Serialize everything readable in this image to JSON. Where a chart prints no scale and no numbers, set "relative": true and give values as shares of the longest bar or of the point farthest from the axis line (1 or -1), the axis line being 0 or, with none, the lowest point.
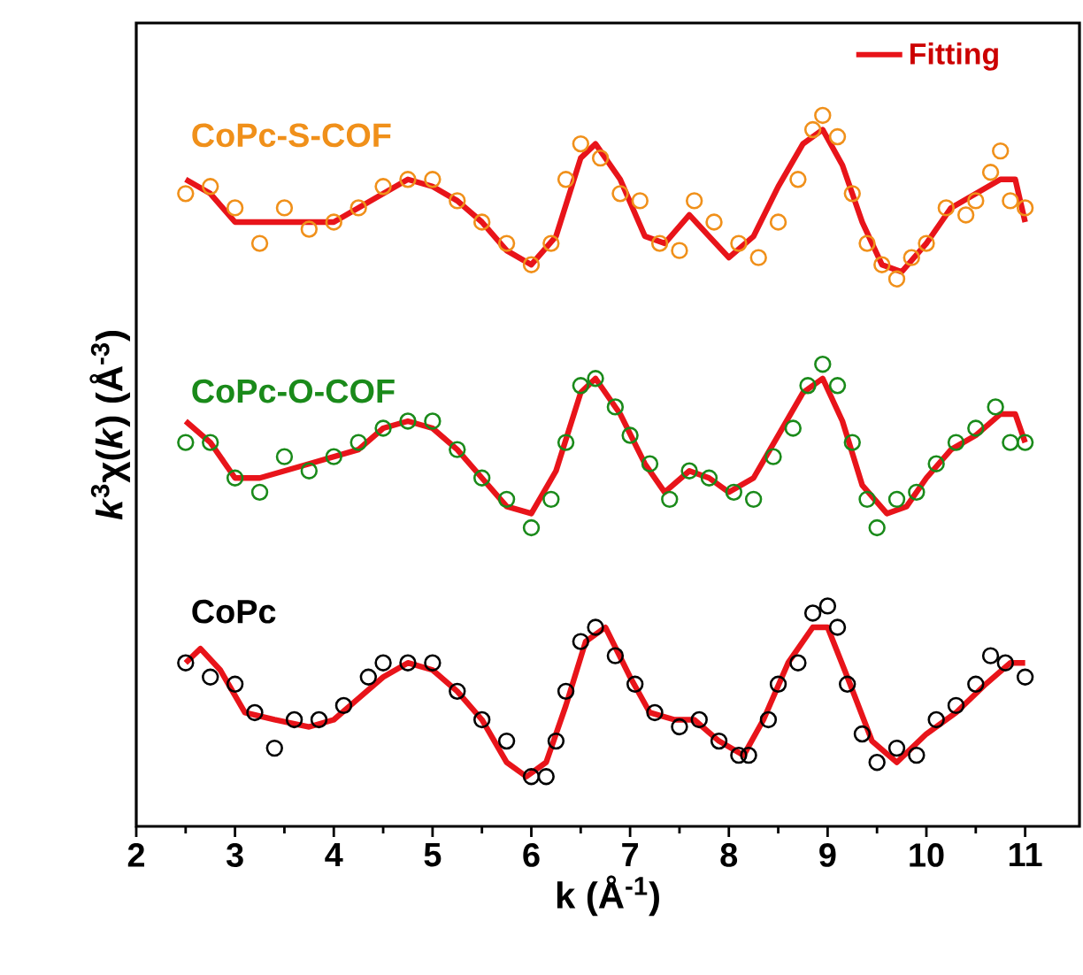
{
  "chart_data": {
    "type": "scatter",
    "relative": true,
    "xlabel": "k (Å$^{-1}$)",
    "ylabel": "*k*$^{3}$χ(*k*) (Å$^{-3}$)",
    "xlim": [
      2,
      11.55
    ],
    "xticks": [
      2,
      3,
      4,
      5,
      6,
      7,
      8,
      9,
      10,
      11
    ],
    "legend": "top right",
    "series": [
      {
        "name": "CoPc-S-COF",
        "marker": "circle",
        "color": "#f0901a",
        "x": [
          2.5,
          2.75,
          3.0,
          3.25,
          3.5,
          3.75,
          4.0,
          4.25,
          4.5,
          4.75,
          5.0,
          5.25,
          5.5,
          5.75,
          6.0,
          6.2,
          6.35,
          6.5,
          6.7,
          6.9,
          7.1,
          7.3,
          7.5,
          7.65,
          7.85,
          8.1,
          8.3,
          8.5,
          8.7,
          8.85,
          8.95,
          9.1,
          9.25,
          9.4,
          9.55,
          9.7,
          9.85,
          10.0,
          10.2,
          10.4,
          10.5,
          10.65,
          10.75,
          10.85,
          11.0
        ],
        "values": [
          0.89,
          0.9,
          0.87,
          0.82,
          0.87,
          0.84,
          0.85,
          0.87,
          0.9,
          0.91,
          0.91,
          0.88,
          0.85,
          0.82,
          0.79,
          0.82,
          0.91,
          0.96,
          0.94,
          0.89,
          0.88,
          0.82,
          0.81,
          0.88,
          0.85,
          0.82,
          0.8,
          0.85,
          0.91,
          0.98,
          1.0,
          0.97,
          0.89,
          0.82,
          0.79,
          0.77,
          0.8,
          0.82,
          0.87,
          0.86,
          0.88,
          0.92,
          0.95,
          0.88,
          0.87
        ]
      },
      {
        "name": "Fitting",
        "type": "line",
        "marker": "none",
        "color": "#e8141a",
        "x": [
          2.5,
          2.75,
          3.0,
          3.25,
          3.5,
          3.75,
          4.0,
          4.25,
          4.5,
          4.75,
          5.0,
          5.25,
          5.5,
          5.75,
          6.0,
          6.25,
          6.5,
          6.65,
          6.9,
          7.15,
          7.35,
          7.6,
          7.8,
          8.0,
          8.25,
          8.5,
          8.75,
          8.95,
          9.15,
          9.35,
          9.55,
          9.75,
          10.0,
          10.25,
          10.5,
          10.75,
          10.9,
          11.0
        ],
        "values": [
          0.91,
          0.89,
          0.85,
          0.85,
          0.85,
          0.85,
          0.85,
          0.87,
          0.89,
          0.91,
          0.9,
          0.88,
          0.85,
          0.81,
          0.79,
          0.83,
          0.94,
          0.96,
          0.91,
          0.83,
          0.82,
          0.86,
          0.83,
          0.8,
          0.83,
          0.9,
          0.96,
          0.98,
          0.93,
          0.85,
          0.79,
          0.78,
          0.82,
          0.87,
          0.89,
          0.91,
          0.91,
          0.85
        ]
      },
      {
        "name": "CoPc-O-COF",
        "marker": "circle",
        "color": "#1a8a1a",
        "x": [
          2.5,
          2.75,
          3.0,
          3.25,
          3.5,
          3.75,
          4.0,
          4.25,
          4.5,
          4.75,
          5.0,
          5.25,
          5.5,
          5.75,
          6.0,
          6.2,
          6.35,
          6.5,
          6.65,
          6.85,
          7.0,
          7.2,
          7.4,
          7.6,
          7.8,
          8.05,
          8.25,
          8.45,
          8.65,
          8.8,
          8.95,
          9.1,
          9.25,
          9.4,
          9.5,
          9.7,
          9.9,
          10.1,
          10.3,
          10.5,
          10.7,
          10.85,
          11.0
        ],
        "values": [
          0.54,
          0.54,
          0.49,
          0.47,
          0.52,
          0.5,
          0.52,
          0.54,
          0.56,
          0.57,
          0.57,
          0.53,
          0.49,
          0.46,
          0.42,
          0.46,
          0.54,
          0.62,
          0.63,
          0.59,
          0.55,
          0.51,
          0.46,
          0.5,
          0.49,
          0.47,
          0.46,
          0.52,
          0.56,
          0.62,
          0.65,
          0.62,
          0.54,
          0.46,
          0.42,
          0.46,
          0.47,
          0.51,
          0.54,
          0.56,
          0.59,
          0.54,
          0.54
        ]
      },
      {
        "type": "line",
        "marker": "none",
        "color": "#e8141a",
        "x": [
          2.5,
          2.75,
          3.0,
          3.25,
          3.5,
          3.75,
          4.0,
          4.25,
          4.5,
          4.75,
          5.0,
          5.25,
          5.5,
          5.75,
          6.0,
          6.25,
          6.5,
          6.65,
          6.9,
          7.15,
          7.35,
          7.6,
          7.8,
          8.0,
          8.25,
          8.5,
          8.75,
          8.95,
          9.15,
          9.35,
          9.6,
          9.8,
          10.0,
          10.25,
          10.5,
          10.75,
          10.9,
          11.0
        ],
        "values": [
          0.57,
          0.54,
          0.49,
          0.49,
          0.5,
          0.51,
          0.52,
          0.53,
          0.56,
          0.57,
          0.56,
          0.53,
          0.49,
          0.45,
          0.44,
          0.5,
          0.61,
          0.63,
          0.58,
          0.51,
          0.47,
          0.5,
          0.49,
          0.47,
          0.49,
          0.55,
          0.61,
          0.63,
          0.57,
          0.48,
          0.44,
          0.45,
          0.49,
          0.53,
          0.55,
          0.58,
          0.58,
          0.54
        ]
      },
      {
        "name": "CoPc",
        "marker": "circle",
        "color": "#000000",
        "x": [
          2.5,
          2.75,
          3.0,
          3.2,
          3.4,
          3.6,
          3.85,
          4.1,
          4.35,
          4.5,
          4.75,
          5.0,
          5.25,
          5.5,
          5.75,
          6.0,
          6.15,
          6.25,
          6.35,
          6.5,
          6.65,
          6.85,
          7.05,
          7.25,
          7.5,
          7.7,
          7.9,
          8.1,
          8.2,
          8.4,
          8.5,
          8.7,
          8.85,
          9.0,
          9.1,
          9.2,
          9.35,
          9.5,
          9.7,
          9.9,
          10.1,
          10.3,
          10.5,
          10.65,
          10.8,
          11.0
        ],
        "values": [
          0.23,
          0.21,
          0.2,
          0.16,
          0.11,
          0.15,
          0.15,
          0.17,
          0.21,
          0.23,
          0.23,
          0.23,
          0.19,
          0.15,
          0.12,
          0.07,
          0.07,
          0.12,
          0.19,
          0.26,
          0.28,
          0.24,
          0.2,
          0.16,
          0.14,
          0.15,
          0.12,
          0.1,
          0.1,
          0.15,
          0.2,
          0.23,
          0.3,
          0.31,
          0.28,
          0.2,
          0.13,
          0.09,
          0.11,
          0.1,
          0.15,
          0.17,
          0.2,
          0.24,
          0.23,
          0.21
        ]
      },
      {
        "type": "line",
        "marker": "none",
        "color": "#e8141a",
        "x": [
          2.5,
          2.65,
          2.85,
          3.1,
          3.4,
          3.75,
          4.0,
          4.25,
          4.5,
          4.75,
          5.0,
          5.25,
          5.5,
          5.75,
          5.95,
          6.15,
          6.35,
          6.55,
          6.75,
          7.0,
          7.2,
          7.45,
          7.65,
          7.9,
          8.15,
          8.35,
          8.6,
          8.85,
          9.0,
          9.2,
          9.45,
          9.7,
          10.0,
          10.3,
          10.6,
          10.85,
          11.0
        ],
        "values": [
          0.23,
          0.25,
          0.22,
          0.16,
          0.15,
          0.14,
          0.15,
          0.18,
          0.21,
          0.23,
          0.22,
          0.19,
          0.15,
          0.09,
          0.07,
          0.09,
          0.17,
          0.26,
          0.28,
          0.21,
          0.16,
          0.15,
          0.15,
          0.12,
          0.1,
          0.15,
          0.23,
          0.28,
          0.28,
          0.21,
          0.12,
          0.09,
          0.13,
          0.16,
          0.2,
          0.23,
          0.23
        ]
      }
    ]
  }
}
